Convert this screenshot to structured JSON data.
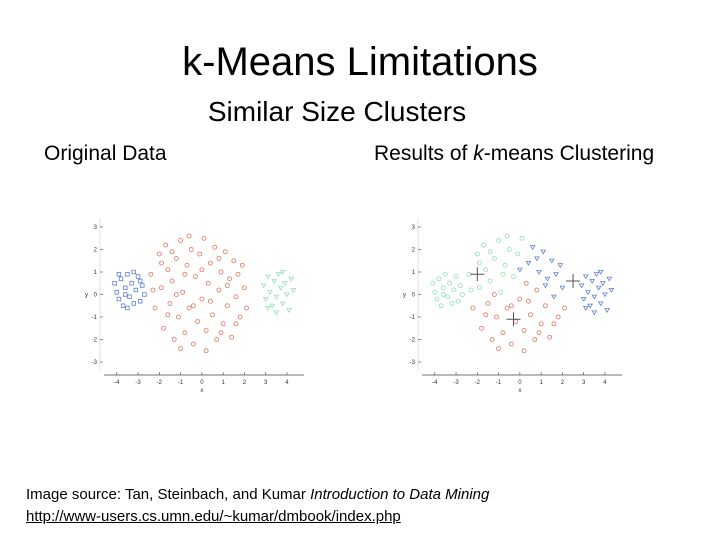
{
  "slide": {
    "title": "k-Means Limitations",
    "subtitle": "Similar Size Clusters",
    "left_label": "Original Data",
    "right_label_pre": "Results of ",
    "right_label_em": "k",
    "right_label_post": "-means Clustering",
    "caption_prefix": "Image source: Tan, Steinbach, and Kumar ",
    "caption_book": "Introduction to Data Mining",
    "caption_url": "http://www-users.cs.umn.edu/~kumar/dmbook/index.php"
  },
  "colors": {
    "blue": "#5a7fd6",
    "red": "#e2735a",
    "green": "#8fe0b0",
    "axis": "#444444"
  },
  "chart_data": [
    {
      "type": "scatter",
      "xlabel": "x",
      "ylabel": "y",
      "xticks": [
        -4,
        -3,
        -2,
        -1,
        0,
        1,
        2,
        3,
        4
      ],
      "yticks": [
        -3,
        -2,
        -1,
        0,
        1,
        2,
        3
      ],
      "xlim": [
        -4.6,
        4.8
      ],
      "ylim": [
        -3.4,
        3.4
      ],
      "series": [
        {
          "color": "blue",
          "marker": "square",
          "points": [
            [
              -4.1,
              0.5
            ],
            [
              -4.0,
              0.1
            ],
            [
              -3.9,
              -0.2
            ],
            [
              -3.8,
              0.7
            ],
            [
              -3.7,
              -0.5
            ],
            [
              -3.6,
              0.3
            ],
            [
              -3.5,
              0.9
            ],
            [
              -3.4,
              -0.1
            ],
            [
              -3.3,
              0.5
            ],
            [
              -3.2,
              -0.4
            ],
            [
              -3.1,
              0.2
            ],
            [
              -3.0,
              0.8
            ],
            [
              -2.9,
              -0.3
            ],
            [
              -2.8,
              0.4
            ],
            [
              -2.7,
              0.0
            ],
            [
              -3.5,
              -0.6
            ],
            [
              -3.9,
              0.9
            ],
            [
              -3.2,
              1.0
            ],
            [
              -2.9,
              0.6
            ],
            [
              -3.6,
              0.0
            ]
          ]
        },
        {
          "color": "red",
          "marker": "circle",
          "points": [
            [
              -2.4,
              0.9
            ],
            [
              -2.2,
              -0.6
            ],
            [
              -2.0,
              1.8
            ],
            [
              -1.9,
              0.3
            ],
            [
              -1.8,
              -1.5
            ],
            [
              -1.7,
              2.2
            ],
            [
              -1.6,
              1.1
            ],
            [
              -1.5,
              -0.4
            ],
            [
              -1.4,
              0.6
            ],
            [
              -1.3,
              -2.0
            ],
            [
              -1.2,
              1.6
            ],
            [
              -1.1,
              -1.0
            ],
            [
              -1.0,
              2.4
            ],
            [
              -0.9,
              0.1
            ],
            [
              -0.8,
              -1.7
            ],
            [
              -0.7,
              1.3
            ],
            [
              -0.6,
              -0.6
            ],
            [
              -0.5,
              2.0
            ],
            [
              -0.4,
              -2.2
            ],
            [
              -0.3,
              0.8
            ],
            [
              -0.2,
              -1.2
            ],
            [
              -0.1,
              1.8
            ],
            [
              0.0,
              -0.2
            ],
            [
              0.1,
              2.5
            ],
            [
              0.2,
              -1.6
            ],
            [
              0.3,
              0.5
            ],
            [
              0.4,
              1.4
            ],
            [
              0.5,
              -0.9
            ],
            [
              0.6,
              2.1
            ],
            [
              0.7,
              -2.0
            ],
            [
              0.8,
              0.2
            ],
            [
              0.9,
              1.0
            ],
            [
              1.0,
              -1.3
            ],
            [
              1.1,
              1.9
            ],
            [
              1.2,
              -0.5
            ],
            [
              1.3,
              0.7
            ],
            [
              1.4,
              -1.9
            ],
            [
              1.5,
              1.5
            ],
            [
              1.6,
              -0.1
            ],
            [
              1.7,
              0.9
            ],
            [
              1.8,
              -1.0
            ],
            [
              1.9,
              1.3
            ],
            [
              2.0,
              0.3
            ],
            [
              2.1,
              -0.6
            ],
            [
              -2.3,
              0.2
            ],
            [
              -1.9,
              1.4
            ],
            [
              -1.6,
              -0.9
            ],
            [
              -1.2,
              0.0
            ],
            [
              -0.8,
              0.9
            ],
            [
              -0.4,
              -0.5
            ],
            [
              0.0,
              1.1
            ],
            [
              0.4,
              -0.3
            ],
            [
              0.8,
              1.6
            ],
            [
              1.2,
              0.4
            ],
            [
              1.6,
              -1.3
            ],
            [
              -1.0,
              -2.4
            ],
            [
              0.2,
              -2.5
            ],
            [
              -0.6,
              2.6
            ],
            [
              0.9,
              -1.7
            ],
            [
              -1.4,
              1.9
            ]
          ]
        },
        {
          "color": "green",
          "marker": "triangle",
          "points": [
            [
              2.9,
              0.4
            ],
            [
              3.0,
              -0.2
            ],
            [
              3.1,
              0.8
            ],
            [
              3.2,
              0.1
            ],
            [
              3.3,
              -0.5
            ],
            [
              3.4,
              0.6
            ],
            [
              3.5,
              -0.1
            ],
            [
              3.6,
              0.9
            ],
            [
              3.7,
              0.3
            ],
            [
              3.8,
              -0.4
            ],
            [
              3.9,
              0.5
            ],
            [
              4.0,
              0.0
            ],
            [
              4.1,
              -0.7
            ],
            [
              4.2,
              0.7
            ],
            [
              3.5,
              -0.8
            ],
            [
              3.1,
              -0.6
            ],
            [
              3.8,
              1.0
            ],
            [
              4.3,
              0.2
            ]
          ]
        }
      ]
    },
    {
      "type": "scatter",
      "xlabel": "x",
      "ylabel": "y",
      "xticks": [
        -4,
        -3,
        -2,
        -1,
        0,
        1,
        2,
        3,
        4
      ],
      "yticks": [
        -3,
        -2,
        -1,
        0,
        1,
        2,
        3
      ],
      "xlim": [
        -4.6,
        4.8
      ],
      "ylim": [
        -3.4,
        3.4
      ],
      "centroids": [
        [
          -2.0,
          0.9
        ],
        [
          -0.3,
          -1.1
        ],
        [
          2.5,
          0.6
        ]
      ],
      "series": [
        {
          "color": "green",
          "marker": "circle",
          "points": [
            [
              -4.1,
              0.5
            ],
            [
              -4.0,
              0.1
            ],
            [
              -3.9,
              -0.2
            ],
            [
              -3.8,
              0.7
            ],
            [
              -3.7,
              -0.5
            ],
            [
              -3.6,
              0.3
            ],
            [
              -3.5,
              0.9
            ],
            [
              -3.4,
              -0.1
            ],
            [
              -3.3,
              0.5
            ],
            [
              -3.2,
              -0.4
            ],
            [
              -3.1,
              0.2
            ],
            [
              -3.0,
              0.8
            ],
            [
              -2.9,
              -0.3
            ],
            [
              -2.8,
              0.4
            ],
            [
              -2.7,
              0.0
            ],
            [
              -2.4,
              0.9
            ],
            [
              -2.0,
              1.8
            ],
            [
              -1.9,
              0.3
            ],
            [
              -1.7,
              2.2
            ],
            [
              -1.6,
              1.1
            ],
            [
              -1.4,
              0.6
            ],
            [
              -1.2,
              1.6
            ],
            [
              -1.0,
              2.4
            ],
            [
              -0.9,
              0.1
            ],
            [
              -0.7,
              1.3
            ],
            [
              -0.5,
              2.0
            ],
            [
              -0.3,
              0.8
            ],
            [
              -0.1,
              1.8
            ],
            [
              0.1,
              2.5
            ],
            [
              -1.9,
              1.4
            ],
            [
              -0.8,
              0.9
            ],
            [
              -0.6,
              2.6
            ],
            [
              -1.4,
              1.9
            ],
            [
              -2.3,
              0.2
            ],
            [
              -3.6,
              0.0
            ]
          ]
        },
        {
          "color": "red",
          "marker": "circle",
          "points": [
            [
              -2.2,
              -0.6
            ],
            [
              -1.8,
              -1.5
            ],
            [
              -1.5,
              -0.4
            ],
            [
              -1.3,
              -2.0
            ],
            [
              -1.1,
              -1.0
            ],
            [
              -0.8,
              -1.7
            ],
            [
              -0.6,
              -0.6
            ],
            [
              -0.4,
              -2.2
            ],
            [
              -0.2,
              -1.2
            ],
            [
              0.0,
              -0.2
            ],
            [
              0.2,
              -1.6
            ],
            [
              0.3,
              0.5
            ],
            [
              0.5,
              -0.9
            ],
            [
              0.7,
              -2.0
            ],
            [
              0.8,
              0.2
            ],
            [
              1.0,
              -1.3
            ],
            [
              1.4,
              -1.9
            ],
            [
              1.2,
              -0.5
            ],
            [
              -1.6,
              -0.9
            ],
            [
              -1.2,
              0.0
            ],
            [
              -0.4,
              -0.5
            ],
            [
              0.4,
              -0.3
            ],
            [
              1.6,
              -1.3
            ],
            [
              -1.0,
              -2.4
            ],
            [
              0.2,
              -2.5
            ],
            [
              0.9,
              -1.7
            ],
            [
              1.8,
              -1.0
            ],
            [
              2.1,
              -0.6
            ]
          ]
        },
        {
          "color": "blue",
          "marker": "triangle",
          "points": [
            [
              0.4,
              1.4
            ],
            [
              0.6,
              2.1
            ],
            [
              0.9,
              1.0
            ],
            [
              1.1,
              1.9
            ],
            [
              1.3,
              0.7
            ],
            [
              1.5,
              1.5
            ],
            [
              1.6,
              -0.1
            ],
            [
              1.7,
              0.9
            ],
            [
              1.9,
              1.3
            ],
            [
              2.0,
              0.3
            ],
            [
              0.0,
              1.1
            ],
            [
              0.8,
              1.6
            ],
            [
              1.2,
              0.4
            ],
            [
              2.9,
              0.4
            ],
            [
              3.0,
              -0.2
            ],
            [
              3.1,
              0.8
            ],
            [
              3.2,
              0.1
            ],
            [
              3.3,
              -0.5
            ],
            [
              3.4,
              0.6
            ],
            [
              3.5,
              -0.1
            ],
            [
              3.6,
              0.9
            ],
            [
              3.7,
              0.3
            ],
            [
              3.8,
              -0.4
            ],
            [
              3.9,
              0.5
            ],
            [
              4.0,
              0.0
            ],
            [
              4.1,
              -0.7
            ],
            [
              4.2,
              0.7
            ],
            [
              3.5,
              -0.8
            ],
            [
              3.1,
              -0.6
            ],
            [
              3.8,
              1.0
            ],
            [
              4.3,
              0.2
            ]
          ]
        }
      ]
    }
  ]
}
